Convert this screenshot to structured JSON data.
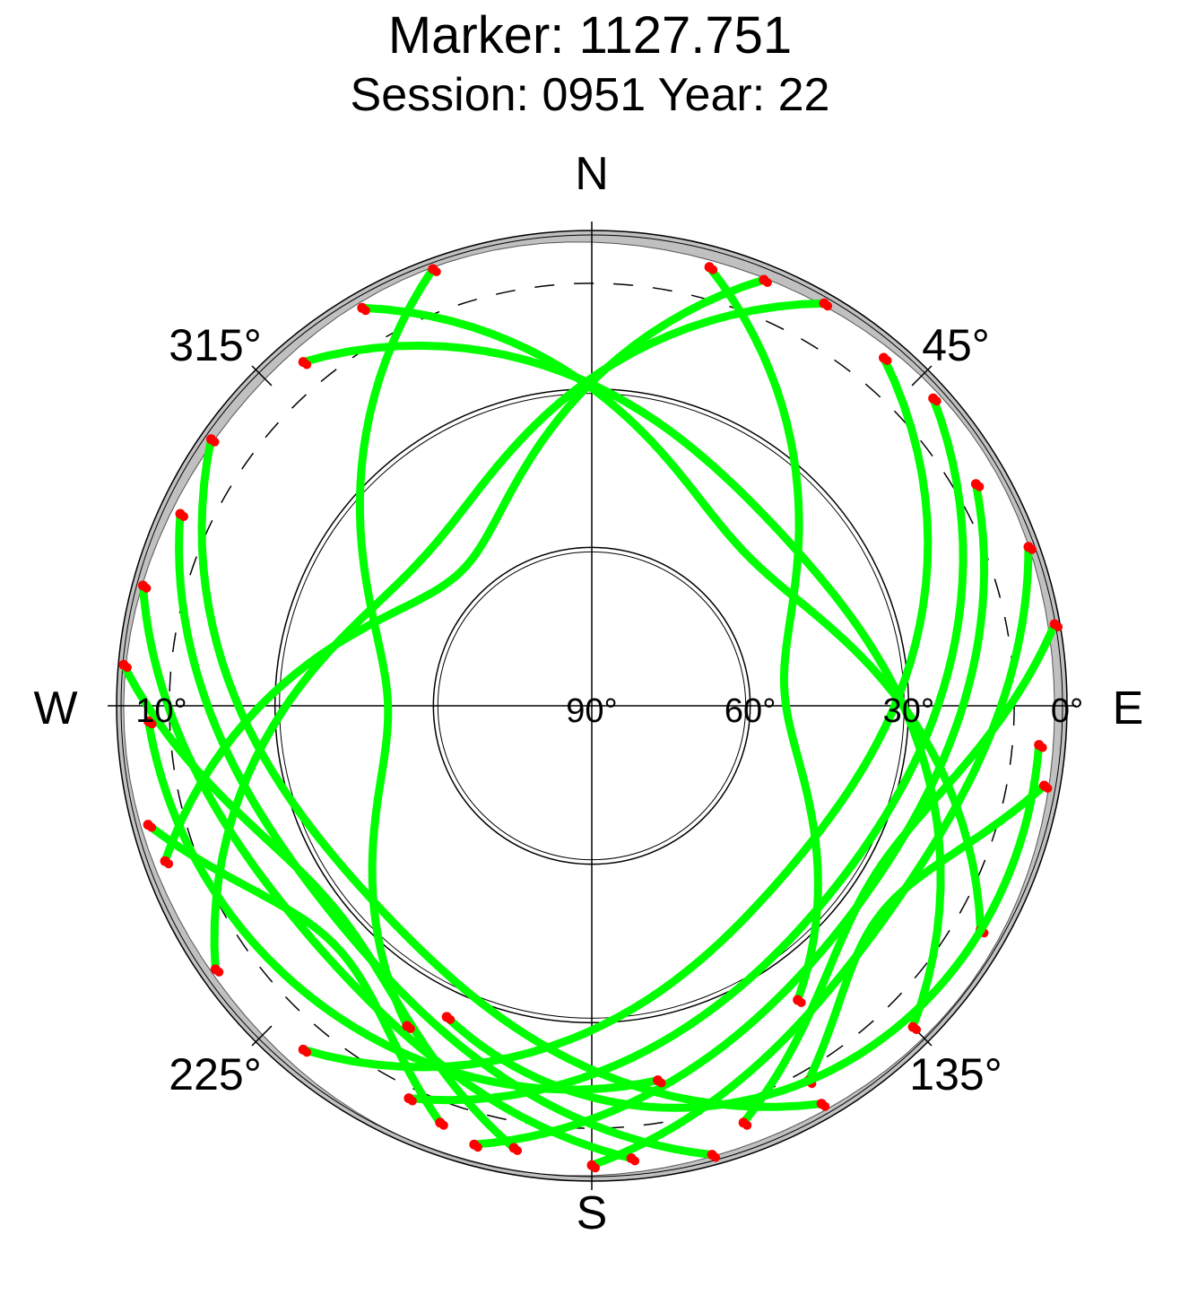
{
  "title": "Marker: 1127.751",
  "subtitle": "Session: 0951 Year: 22",
  "chart_data": {
    "type": "scatter",
    "projection": "polar (azimuth / elevation skyplot)",
    "title": "Marker: 1127.751",
    "subtitle": "Session: 0951 Year: 22",
    "cardinal_labels": {
      "north": "N",
      "east": "E",
      "south": "S",
      "west": "W"
    },
    "azimuth_tick_labels": [
      {
        "azimuth": 45,
        "label": "45°"
      },
      {
        "azimuth": 135,
        "label": "135°"
      },
      {
        "azimuth": 225,
        "label": "225°"
      },
      {
        "azimuth": 315,
        "label": "315°"
      }
    ],
    "elevation_tick_labels": [
      {
        "elevation": 0,
        "label": "0°"
      },
      {
        "elevation": 30,
        "label": "30°"
      },
      {
        "elevation": 60,
        "label": "60°"
      },
      {
        "elevation": 90,
        "label": "90°"
      },
      {
        "elevation": 10,
        "label": "10°"
      }
    ],
    "elevation_rings": [
      0,
      30,
      60
    ],
    "dashed_ring_elevation": 10,
    "colors": {
      "track": "#00ff00",
      "track_endpoint": "#ff0000",
      "horizon_mask": "#c0c0c0",
      "grid": "#000000"
    },
    "series": [
      {
        "name_color": "green",
        "az_start": 22,
        "el_start": 3,
        "el_max": 55,
        "az_end": 250,
        "el_end": 4
      },
      {
        "name_color": "green",
        "az_start": 30,
        "el_start": 2,
        "el_max": 48,
        "az_end": 235,
        "el_end": 3
      },
      {
        "name_color": "green",
        "az_start": 40,
        "el_start": 4,
        "el_max": 42,
        "az_end": 220,
        "el_end": 5
      },
      {
        "name_color": "green",
        "az_start": 48,
        "el_start": 3,
        "el_max": 35,
        "az_end": 205,
        "el_end": 8
      },
      {
        "name_color": "green",
        "az_start": 60,
        "el_start": 6,
        "el_max": 28,
        "az_end": 195,
        "el_end": 4
      },
      {
        "name_color": "green",
        "az_start": 70,
        "el_start": 2,
        "el_max": 22,
        "az_end": 180,
        "el_end": 3
      },
      {
        "name_color": "green",
        "az_start": 80,
        "el_start": 1,
        "el_max": 30,
        "az_end": 160,
        "el_end": 6
      },
      {
        "name_color": "green",
        "az_start": 100,
        "el_start": 3,
        "el_max": 25,
        "az_end": 150,
        "el_end": 8
      },
      {
        "name_color": "green",
        "az_start": 330,
        "el_start": 3,
        "el_max": 50,
        "az_end": 120,
        "el_end": 5
      },
      {
        "name_color": "green",
        "az_start": 320,
        "el_start": 5,
        "el_max": 42,
        "az_end": 135,
        "el_end": 4
      },
      {
        "name_color": "green",
        "az_start": 305,
        "el_start": 2,
        "el_max": 35,
        "az_end": 150,
        "el_end": 3
      },
      {
        "name_color": "green",
        "az_start": 295,
        "el_start": 4,
        "el_max": 28,
        "az_end": 165,
        "el_end": 2
      },
      {
        "name_color": "green",
        "az_start": 285,
        "el_start": 2,
        "el_max": 22,
        "az_end": 175,
        "el_end": 4
      },
      {
        "name_color": "green",
        "az_start": 275,
        "el_start": 1,
        "el_max": 30,
        "az_end": 190,
        "el_end": 5
      },
      {
        "name_color": "green",
        "az_start": 255,
        "el_start": 3,
        "el_max": 25,
        "az_end": 200,
        "el_end": 6
      },
      {
        "name_color": "green",
        "az_start": 340,
        "el_start": 2,
        "el_max": 60,
        "az_end": 210,
        "el_end": 20
      },
      {
        "name_color": "green",
        "az_start": 15,
        "el_start": 4,
        "el_max": 62,
        "az_end": 145,
        "el_end": 22
      },
      {
        "name_color": "green",
        "az_start": 95,
        "el_start": 5,
        "el_max": 18,
        "az_end": 205,
        "el_end": 25
      },
      {
        "name_color": "green",
        "az_start": 268,
        "el_start": 6,
        "el_max": 20,
        "az_end": 170,
        "el_end": 18
      }
    ]
  }
}
